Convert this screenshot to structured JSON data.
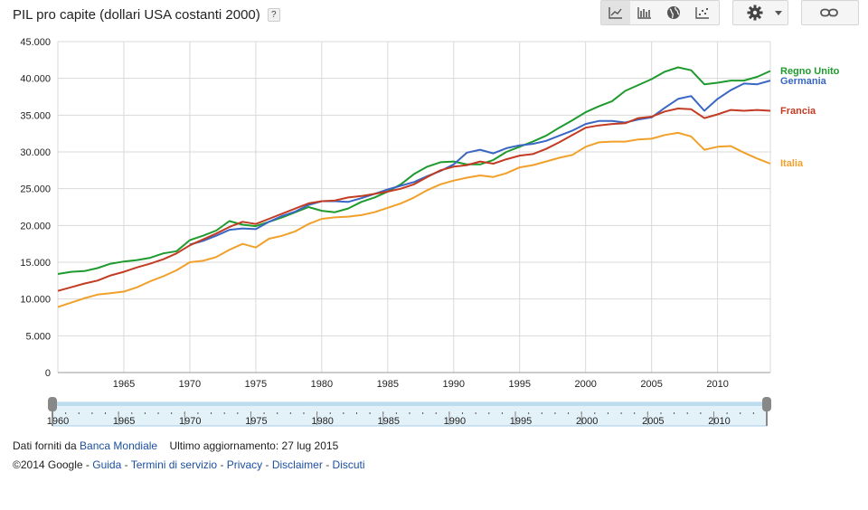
{
  "header": {
    "title": "PIL pro capite (dollari USA costanti 2000)",
    "help_label": "?"
  },
  "toolbar": {
    "buttons": [
      {
        "icon": "line-chart-icon",
        "selected": true
      },
      {
        "icon": "bar-chart-icon",
        "selected": false
      },
      {
        "icon": "globe-icon",
        "selected": false
      },
      {
        "icon": "scatter-chart-icon",
        "selected": false
      },
      {
        "icon": "gear-icon",
        "selected": false
      },
      {
        "icon": "link-icon",
        "selected": false
      }
    ]
  },
  "colors": {
    "regno_unito": "#1f9a2e",
    "germania": "#3a66c4",
    "francia": "#c23b22",
    "italia": "#f1a02a",
    "grid": "#d9d9d9"
  },
  "chart_data": {
    "type": "line",
    "title": "PIL pro capite (dollari USA costanti 2000)",
    "xlim": [
      1960,
      2014
    ],
    "ylim": [
      0,
      45000
    ],
    "y_ticks": [
      "0",
      "5.000",
      "10.000",
      "15.000",
      "20.000",
      "25.000",
      "30.000",
      "35.000",
      "40.000",
      "45.000"
    ],
    "x_ticks": [
      "1965",
      "1970",
      "1975",
      "1980",
      "1985",
      "1990",
      "1995",
      "2000",
      "2005",
      "2010"
    ],
    "grid": true,
    "legend": "right",
    "x": [
      1960,
      1961,
      1962,
      1963,
      1964,
      1965,
      1966,
      1967,
      1968,
      1969,
      1970,
      1971,
      1972,
      1973,
      1974,
      1975,
      1976,
      1977,
      1978,
      1979,
      1980,
      1981,
      1982,
      1983,
      1984,
      1985,
      1986,
      1987,
      1988,
      1989,
      1990,
      1991,
      1992,
      1993,
      1994,
      1995,
      1996,
      1997,
      1998,
      1999,
      2000,
      2001,
      2002,
      2003,
      2004,
      2005,
      2006,
      2007,
      2008,
      2009,
      2010,
      2011,
      2012,
      2013,
      2014
    ],
    "series": [
      {
        "name": "Regno Unito",
        "color": "#1f9a2e",
        "values": [
          13400,
          13700,
          13800,
          14200,
          14800,
          15100,
          15300,
          15600,
          16200,
          16500,
          18000,
          18600,
          19300,
          20600,
          20100,
          19900,
          20500,
          21100,
          21800,
          22500,
          22000,
          21800,
          22300,
          23200,
          23800,
          24600,
          25600,
          27000,
          28000,
          28600,
          28700,
          28300,
          28300,
          28900,
          30000,
          30700,
          31400,
          32200,
          33300,
          34300,
          35400,
          36200,
          36900,
          38300,
          39100,
          39900,
          40900,
          41500,
          41100,
          39200,
          39400,
          39700,
          39700,
          40200,
          41000
        ]
      },
      {
        "name": "Germania",
        "color": "#3a66c4",
        "values": [
          null,
          null,
          null,
          null,
          null,
          null,
          null,
          null,
          null,
          null,
          17400,
          17900,
          18600,
          19400,
          19600,
          19500,
          20500,
          21300,
          21900,
          22800,
          23300,
          23300,
          23200,
          23700,
          24300,
          24900,
          25400,
          25900,
          26700,
          27400,
          28300,
          29900,
          30300,
          29800,
          30500,
          30900,
          31100,
          31500,
          32200,
          32900,
          33800,
          34200,
          34200,
          34000,
          34400,
          34700,
          36000,
          37200,
          37600,
          35600,
          37200,
          38400,
          39300,
          39200,
          39700
        ]
      },
      {
        "name": "Francia",
        "color": "#c23b22",
        "values": [
          11100,
          11600,
          12100,
          12500,
          13200,
          13700,
          14300,
          14800,
          15400,
          16200,
          17300,
          18100,
          18900,
          19800,
          20500,
          20200,
          20900,
          21600,
          22300,
          23000,
          23300,
          23400,
          23800,
          24000,
          24300,
          24600,
          25000,
          25600,
          26600,
          27500,
          28000,
          28200,
          28700,
          28400,
          29000,
          29500,
          29700,
          30400,
          31300,
          32300,
          33300,
          33600,
          33800,
          33900,
          34600,
          34800,
          35500,
          35900,
          35800,
          34600,
          35100,
          35700,
          35600,
          35700,
          35600
        ]
      },
      {
        "name": "Italia",
        "color": "#f1a02a",
        "values": [
          8900,
          9500,
          10100,
          10600,
          10800,
          11000,
          11600,
          12400,
          13100,
          13900,
          15000,
          15200,
          15700,
          16700,
          17500,
          17000,
          18200,
          18600,
          19200,
          20200,
          20900,
          21100,
          21200,
          21400,
          21800,
          22400,
          23000,
          23800,
          24800,
          25600,
          26100,
          26500,
          26800,
          26600,
          27100,
          27900,
          28200,
          28700,
          29200,
          29600,
          30700,
          31300,
          31400,
          31400,
          31700,
          31800,
          32300,
          32600,
          32100,
          30300,
          30700,
          30800,
          29900,
          29100,
          28400
        ]
      }
    ]
  },
  "timeline": {
    "labels": [
      "1960",
      "1965",
      "1970",
      "1975",
      "1980",
      "1985",
      "1990",
      "1995",
      "2000",
      "2005",
      "2010"
    ]
  },
  "footer": {
    "source_prefix": "Dati forniti da",
    "source_link": "Banca Mondiale",
    "updated": "Ultimo aggiornamento: 27 lug 2015",
    "copyright": "©2014 Google -",
    "links": [
      "Guida",
      "Termini di servizio",
      "Privacy",
      "Disclaimer",
      "Discuti"
    ],
    "separator": "-"
  }
}
